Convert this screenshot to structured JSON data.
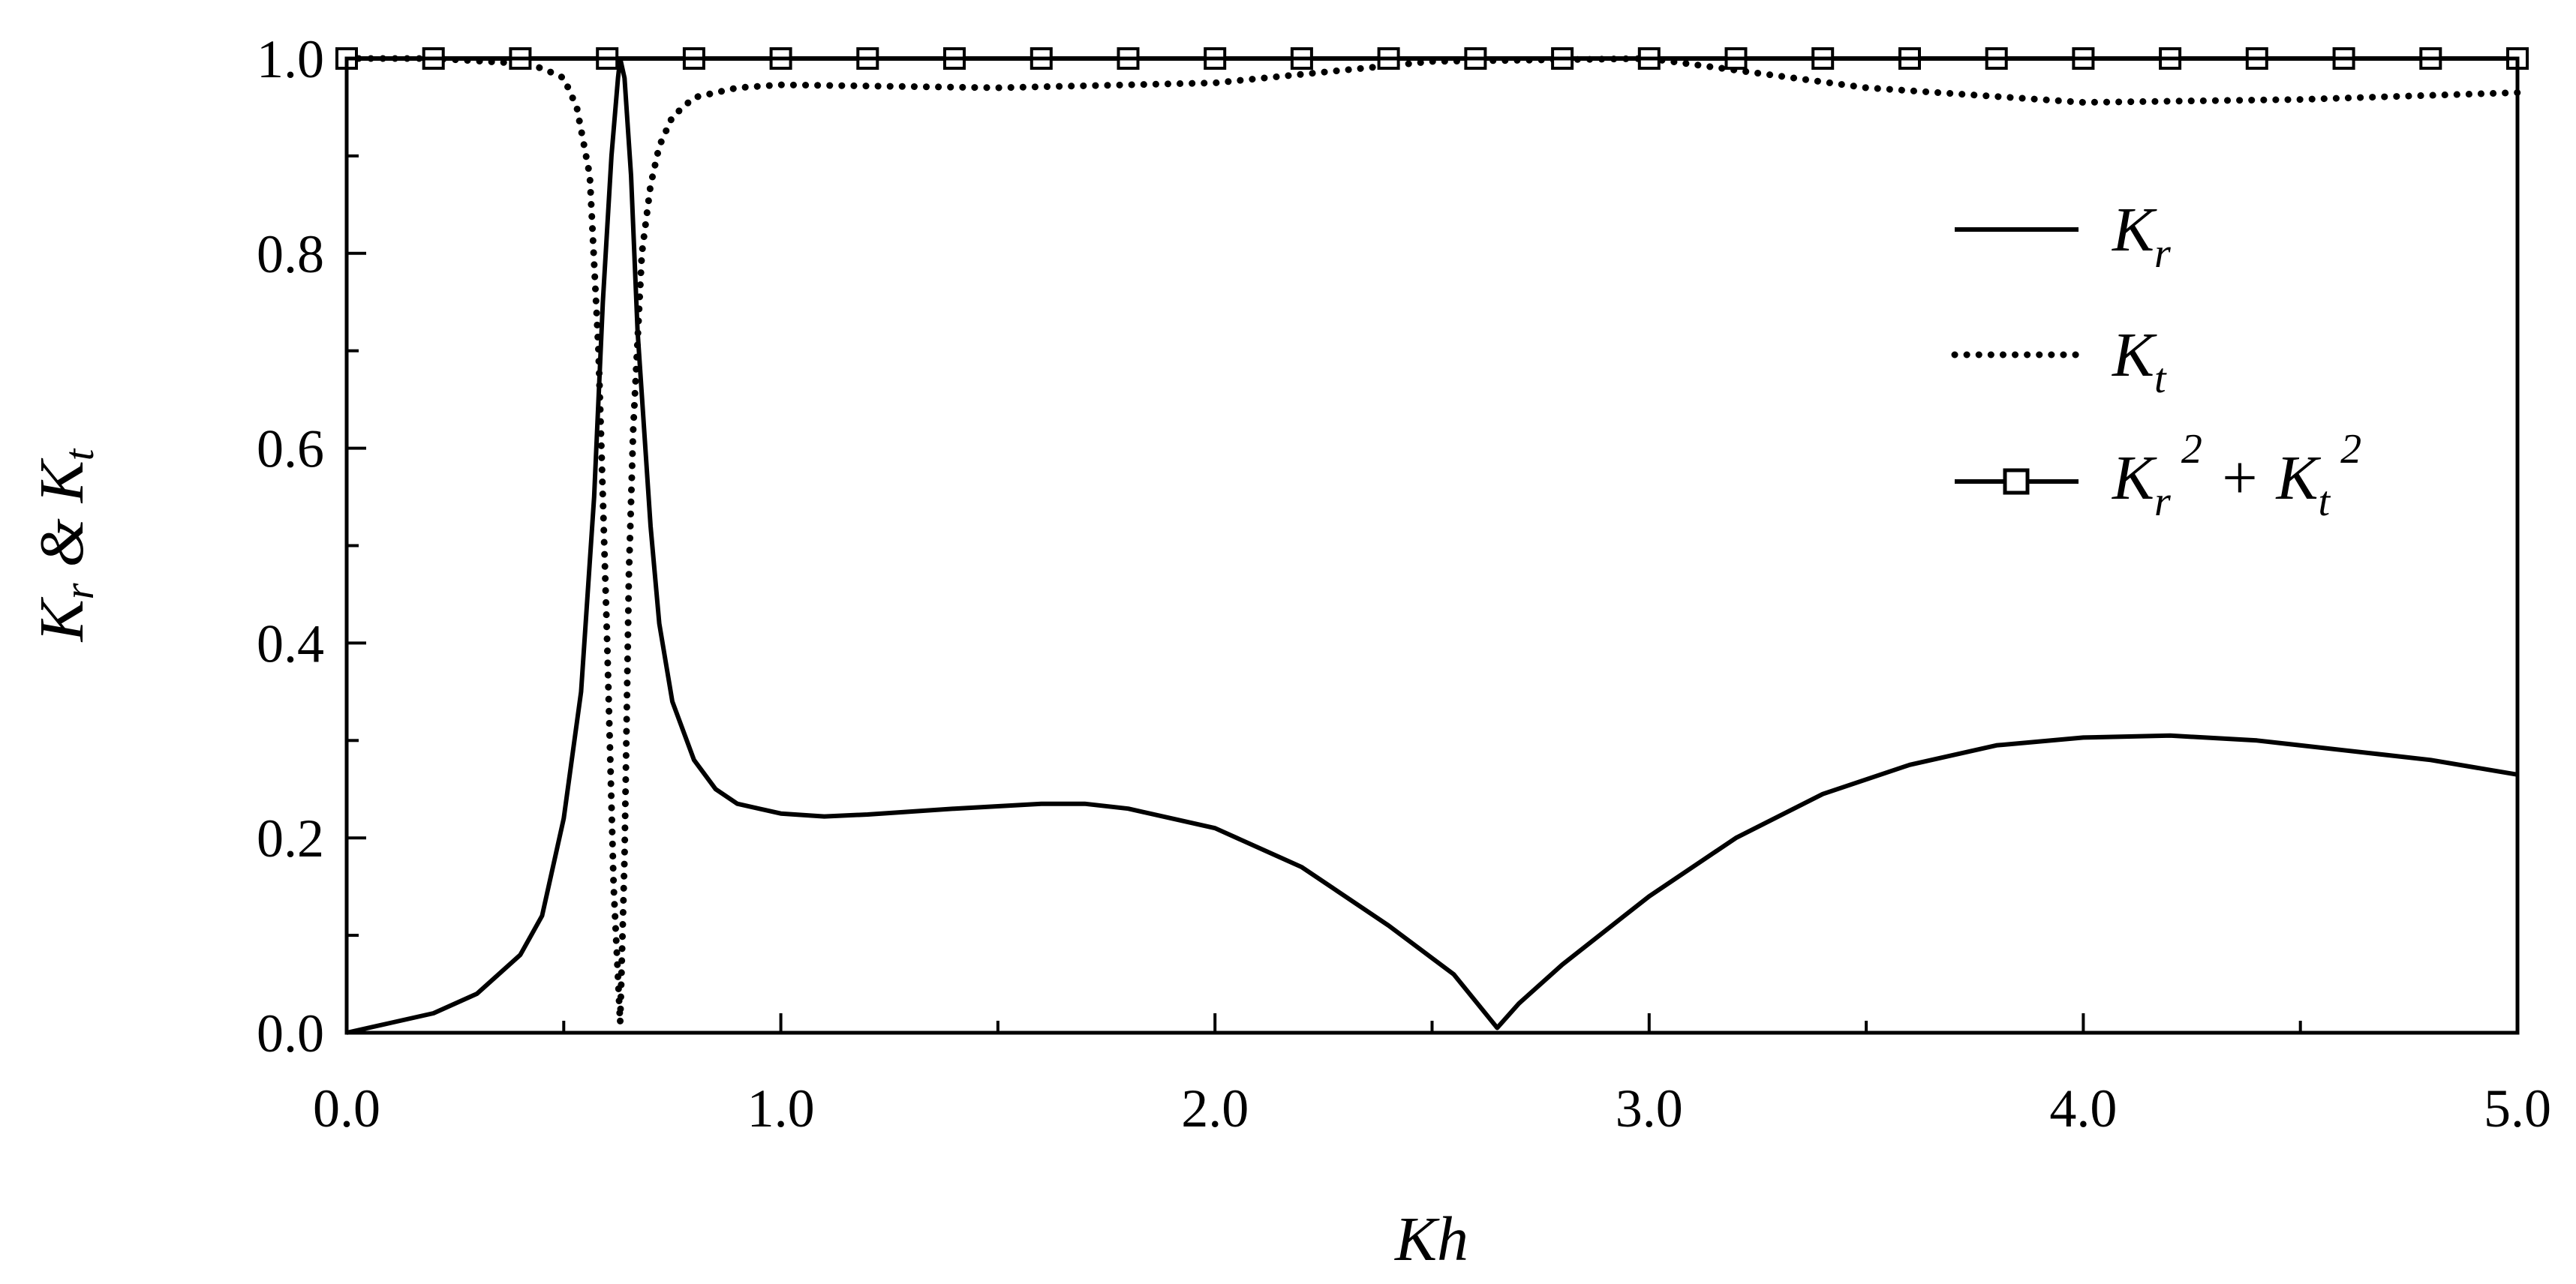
{
  "chart_data": {
    "type": "line",
    "title": "",
    "xlabel": "Kh",
    "ylabel": {
      "base1": "K",
      "sub1": "r",
      "sep": " & ",
      "base2": "K",
      "sub2": "t"
    },
    "xlim": [
      0,
      5
    ],
    "ylim": [
      0,
      1
    ],
    "x_ticks": [
      0,
      1,
      2,
      3,
      4,
      5
    ],
    "x_tick_labels": [
      "0.0",
      "1.0",
      "2.0",
      "3.0",
      "4.0",
      "5.0"
    ],
    "y_ticks": [
      0,
      0.2,
      0.4,
      0.6,
      0.8,
      1.0
    ],
    "y_tick_labels": [
      "0.0",
      "0.2",
      "0.4",
      "0.6",
      "0.8",
      "1.0"
    ],
    "grid": false,
    "legend_position": "right",
    "legend": [
      {
        "base": "K",
        "sub": "r",
        "style": "solid"
      },
      {
        "base": "K",
        "sub": "t",
        "style": "dotted"
      },
      {
        "base1": "K",
        "sub1": "r",
        "sup1": "2",
        "op": " + ",
        "base2": "K",
        "sub2": "t",
        "sup2": "2",
        "style": "solid-square"
      }
    ],
    "series": [
      {
        "id": "Kr",
        "style": "solid",
        "x": [
          0,
          0.1,
          0.2,
          0.3,
          0.4,
          0.45,
          0.5,
          0.54,
          0.57,
          0.59,
          0.61,
          0.625,
          0.63,
          0.64,
          0.655,
          0.67,
          0.7,
          0.72,
          0.75,
          0.8,
          0.85,
          0.9,
          1.0,
          1.1,
          1.2,
          1.4,
          1.6,
          1.7,
          1.8,
          2.0,
          2.2,
          2.4,
          2.55,
          2.65,
          2.7,
          2.8,
          3.0,
          3.2,
          3.4,
          3.6,
          3.8,
          4.0,
          4.2,
          4.4,
          4.6,
          4.8,
          5.0
        ],
        "y": [
          0,
          0.01,
          0.02,
          0.04,
          0.08,
          0.12,
          0.22,
          0.35,
          0.55,
          0.75,
          0.9,
          0.98,
          1.0,
          0.98,
          0.88,
          0.72,
          0.52,
          0.42,
          0.34,
          0.28,
          0.25,
          0.235,
          0.225,
          0.222,
          0.224,
          0.23,
          0.235,
          0.235,
          0.23,
          0.21,
          0.17,
          0.11,
          0.06,
          0.005,
          0.03,
          0.07,
          0.14,
          0.2,
          0.245,
          0.275,
          0.295,
          0.303,
          0.305,
          0.3,
          0.29,
          0.28,
          0.265
        ]
      },
      {
        "id": "Kt",
        "style": "dotted",
        "x": [
          0,
          0.2,
          0.4,
          0.45,
          0.5,
          0.53,
          0.56,
          0.58,
          0.6,
          0.615,
          0.63,
          0.64,
          0.65,
          0.66,
          0.68,
          0.7,
          0.72,
          0.75,
          0.8,
          0.9,
          1.0,
          1.5,
          2.0,
          2.5,
          3.0,
          3.5,
          4.0,
          4.5,
          5.0
        ],
        "y": [
          1.0,
          1.0,
          0.995,
          0.99,
          0.98,
          0.95,
          0.88,
          0.7,
          0.4,
          0.15,
          0.01,
          0.18,
          0.47,
          0.62,
          0.8,
          0.87,
          0.91,
          0.94,
          0.96,
          0.97,
          0.973,
          0.97,
          0.975,
          0.997,
          1.0,
          0.97,
          0.955,
          0.958,
          0.965
        ]
      },
      {
        "id": "Kr2Kt2",
        "style": "solid-square",
        "x": [
          0,
          0.2,
          0.4,
          0.6,
          0.8,
          1.0,
          1.2,
          1.4,
          1.6,
          1.8,
          2.0,
          2.2,
          2.4,
          2.6,
          2.8,
          3.0,
          3.2,
          3.4,
          3.6,
          3.8,
          4.0,
          4.2,
          4.4,
          4.6,
          4.8,
          5.0
        ],
        "y": [
          1,
          1,
          1,
          1,
          1,
          1,
          1,
          1,
          1,
          1,
          1,
          1,
          1,
          1,
          1,
          1,
          1,
          1,
          1,
          1,
          1,
          1,
          1,
          1,
          1,
          1
        ]
      }
    ]
  }
}
